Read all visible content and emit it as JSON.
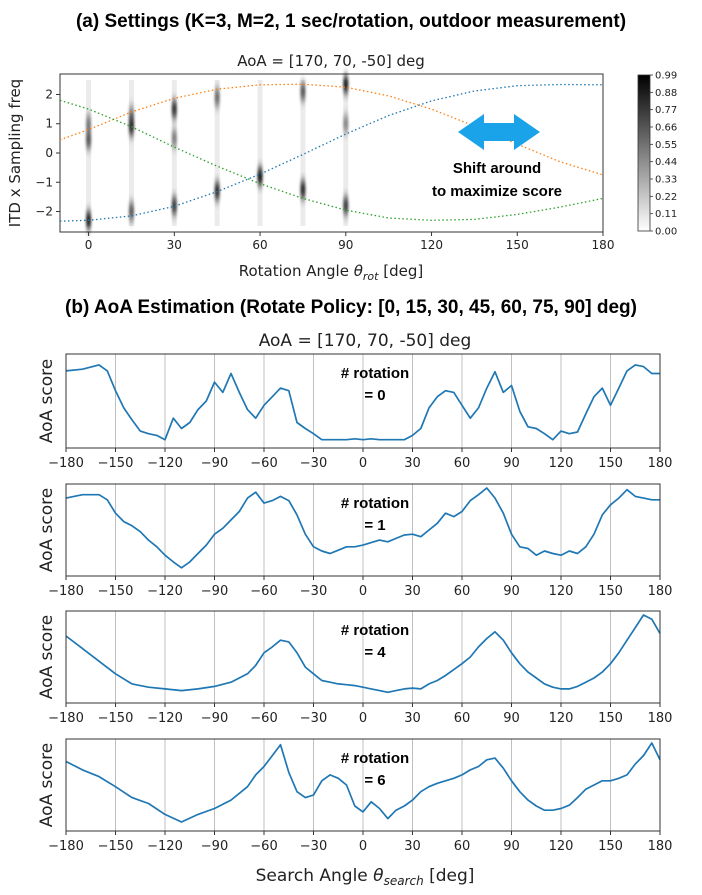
{
  "titles": {
    "section_a": "(a) Settings (K=3, M=2, 1 sec/rotation,  outdoor measurement)",
    "section_b": "(b) AoA Estimation (Rotate Policy: [0, 15, 30, 45, 60, 75, 90] deg)"
  },
  "colors": {
    "blue": "#1f77b4",
    "orange": "#ff7f0e",
    "green": "#2ca02c",
    "arrow": "#1aa3e8",
    "grid": "#b0b0b0"
  },
  "chart_data": [
    {
      "type": "heatmap",
      "title": "AoA = [170, 70, -50] deg",
      "xlabel": "Rotation Angle θrot [deg]",
      "xlabel_main": "Rotation Angle ",
      "xlabel_sym": "θ",
      "xlabel_sub": "rot",
      "xlabel_tail": " [deg]",
      "ylabel": "ITD x Sampling freq",
      "xlim": [
        -10,
        180
      ],
      "ylim": [
        -2.7,
        2.7
      ],
      "xticks": [
        0,
        30,
        60,
        90,
        120,
        150,
        180
      ],
      "yticks": [
        -2,
        -1,
        0,
        1,
        2
      ],
      "colorbar": {
        "ticks": [
          "0.99",
          "0.88",
          "0.77",
          "0.66",
          "0.55",
          "0.44",
          "0.33",
          "0.22",
          "0.11",
          "0.00"
        ],
        "range": [
          0,
          0.99
        ]
      },
      "grid": false,
      "columns_x": [
        0,
        15,
        30,
        45,
        60,
        75,
        90
      ],
      "blobs": [
        {
          "x": 0,
          "y": -2.3,
          "v": 0.9
        },
        {
          "x": 0,
          "y": 0.45,
          "v": 0.6
        },
        {
          "x": 0,
          "y": 1.0,
          "v": 0.4
        },
        {
          "x": 15,
          "y": 0.9,
          "v": 0.85
        },
        {
          "x": 15,
          "y": -2.0,
          "v": 0.6
        },
        {
          "x": 15,
          "y": 1.3,
          "v": 0.4
        },
        {
          "x": 30,
          "y": 1.5,
          "v": 0.8
        },
        {
          "x": 30,
          "y": -1.8,
          "v": 0.75
        },
        {
          "x": 30,
          "y": 0.5,
          "v": 0.4
        },
        {
          "x": 45,
          "y": -1.3,
          "v": 0.85
        },
        {
          "x": 45,
          "y": 1.9,
          "v": 0.5
        },
        {
          "x": 60,
          "y": -0.8,
          "v": 0.95
        },
        {
          "x": 75,
          "y": -1.25,
          "v": 0.85
        },
        {
          "x": 75,
          "y": 2.1,
          "v": 0.6
        },
        {
          "x": 90,
          "y": 2.35,
          "v": 0.9
        },
        {
          "x": 90,
          "y": -1.8,
          "v": 0.75
        },
        {
          "x": 90,
          "y": 1.0,
          "v": 0.35
        }
      ],
      "curves": [
        {
          "color": "blue",
          "samples": [
            [
              -10,
              -2.33
            ],
            [
              0,
              -2.3
            ],
            [
              15,
              -2.15
            ],
            [
              30,
              -1.82
            ],
            [
              45,
              -1.32
            ],
            [
              60,
              -0.72
            ],
            [
              75,
              -0.05
            ],
            [
              90,
              0.65
            ],
            [
              105,
              1.28
            ],
            [
              120,
              1.78
            ],
            [
              135,
              2.12
            ],
            [
              150,
              2.3
            ],
            [
              165,
              2.34
            ],
            [
              180,
              2.33
            ]
          ]
        },
        {
          "color": "orange",
          "samples": [
            [
              -10,
              0.45
            ],
            [
              0,
              0.8
            ],
            [
              15,
              1.4
            ],
            [
              30,
              1.87
            ],
            [
              45,
              2.18
            ],
            [
              60,
              2.33
            ],
            [
              75,
              2.35
            ],
            [
              90,
              2.25
            ],
            [
              105,
              1.95
            ],
            [
              120,
              1.5
            ],
            [
              135,
              0.92
            ],
            [
              150,
              0.3
            ],
            [
              165,
              -0.3
            ],
            [
              180,
              -0.75
            ]
          ]
        },
        {
          "color": "green",
          "samples": [
            [
              -10,
              1.8
            ],
            [
              0,
              1.5
            ],
            [
              15,
              0.9
            ],
            [
              30,
              0.2
            ],
            [
              45,
              -0.45
            ],
            [
              60,
              -1.05
            ],
            [
              75,
              -1.55
            ],
            [
              90,
              -1.95
            ],
            [
              105,
              -2.22
            ],
            [
              120,
              -2.3
            ],
            [
              135,
              -2.27
            ],
            [
              150,
              -2.1
            ],
            [
              165,
              -1.85
            ],
            [
              180,
              -1.55
            ]
          ]
        }
      ],
      "annotation": {
        "line1": "Shift around",
        "line2": "to maximize score"
      }
    },
    {
      "type": "line",
      "title": "AoA = [170, 70, -50] deg",
      "xlabel": "Search Angle θsearch [deg]",
      "xlabel_main": "Search Angle ",
      "xlabel_sym": "θ",
      "xlabel_sub": "search",
      "xlabel_tail": " [deg]",
      "ylabel": "AoA score",
      "xlim": [
        -180,
        180
      ],
      "xticks": [
        -180,
        -150,
        -120,
        -90,
        -60,
        -30,
        0,
        30,
        60,
        90,
        120,
        150,
        180
      ],
      "ylim": [
        0,
        1
      ],
      "grid": "vertical",
      "panels": [
        {
          "label_line1": "# rotation",
          "label_line2": "= 0",
          "series_color": "blue",
          "x": [
            -180,
            -170,
            -160,
            -155,
            -150,
            -145,
            -140,
            -135,
            -130,
            -125,
            -120,
            -115,
            -110,
            -105,
            -100,
            -95,
            -90,
            -85,
            -80,
            -75,
            -70,
            -65,
            -60,
            -55,
            -50,
            -45,
            -40,
            -35,
            -30,
            -25,
            -20,
            -15,
            -10,
            -5,
            0,
            5,
            10,
            15,
            20,
            25,
            30,
            35,
            40,
            45,
            50,
            55,
            60,
            65,
            70,
            75,
            80,
            85,
            90,
            95,
            100,
            105,
            110,
            115,
            120,
            125,
            130,
            135,
            140,
            145,
            150,
            155,
            160,
            165,
            170,
            175,
            180
          ],
          "y": [
            0.85,
            0.87,
            0.92,
            0.85,
            0.62,
            0.42,
            0.28,
            0.15,
            0.12,
            0.1,
            0.05,
            0.3,
            0.18,
            0.25,
            0.4,
            0.5,
            0.72,
            0.6,
            0.82,
            0.6,
            0.4,
            0.3,
            0.45,
            0.55,
            0.65,
            0.62,
            0.25,
            0.18,
            0.12,
            0.05,
            0.05,
            0.05,
            0.05,
            0.06,
            0.05,
            0.06,
            0.05,
            0.05,
            0.05,
            0.05,
            0.1,
            0.18,
            0.42,
            0.55,
            0.62,
            0.6,
            0.45,
            0.3,
            0.42,
            0.65,
            0.84,
            0.6,
            0.68,
            0.38,
            0.2,
            0.18,
            0.12,
            0.05,
            0.15,
            0.12,
            0.14,
            0.35,
            0.55,
            0.65,
            0.45,
            0.65,
            0.85,
            0.92,
            0.9,
            0.82,
            0.82
          ]
        },
        {
          "label_line1": "# rotation",
          "label_line2": "= 1",
          "series_color": "blue",
          "x": [
            -180,
            -170,
            -160,
            -155,
            -150,
            -145,
            -140,
            -135,
            -130,
            -125,
            -120,
            -115,
            -110,
            -105,
            -100,
            -95,
            -90,
            -85,
            -80,
            -75,
            -70,
            -65,
            -60,
            -55,
            -50,
            -45,
            -40,
            -35,
            -30,
            -25,
            -20,
            -15,
            -10,
            -5,
            0,
            5,
            10,
            15,
            20,
            25,
            30,
            35,
            40,
            45,
            50,
            55,
            60,
            65,
            70,
            75,
            80,
            85,
            90,
            95,
            100,
            105,
            110,
            115,
            120,
            125,
            130,
            135,
            140,
            145,
            150,
            155,
            160,
            165,
            170,
            175,
            180
          ],
          "y": [
            0.88,
            0.92,
            0.92,
            0.86,
            0.7,
            0.6,
            0.55,
            0.48,
            0.38,
            0.3,
            0.2,
            0.12,
            0.05,
            0.12,
            0.22,
            0.32,
            0.45,
            0.52,
            0.62,
            0.72,
            0.88,
            0.95,
            0.82,
            0.85,
            0.9,
            0.85,
            0.68,
            0.45,
            0.3,
            0.25,
            0.22,
            0.26,
            0.3,
            0.3,
            0.32,
            0.35,
            0.38,
            0.36,
            0.4,
            0.44,
            0.45,
            0.42,
            0.5,
            0.58,
            0.7,
            0.66,
            0.72,
            0.85,
            0.92,
            1.0,
            0.88,
            0.7,
            0.45,
            0.3,
            0.28,
            0.2,
            0.25,
            0.22,
            0.2,
            0.25,
            0.22,
            0.3,
            0.45,
            0.68,
            0.8,
            0.88,
            0.98,
            0.9,
            0.88,
            0.86,
            0.86
          ]
        },
        {
          "label_line1": "# rotation",
          "label_line2": "= 4",
          "series_color": "blue",
          "x": [
            -180,
            -170,
            -160,
            -150,
            -140,
            -130,
            -120,
            -110,
            -100,
            -90,
            -80,
            -70,
            -65,
            -60,
            -55,
            -50,
            -45,
            -40,
            -35,
            -30,
            -25,
            -20,
            -15,
            -10,
            -5,
            0,
            5,
            10,
            15,
            20,
            25,
            30,
            35,
            40,
            45,
            50,
            55,
            60,
            65,
            70,
            75,
            80,
            85,
            90,
            95,
            100,
            105,
            110,
            115,
            120,
            125,
            130,
            135,
            140,
            145,
            150,
            155,
            160,
            165,
            170,
            175,
            180
          ],
          "y": [
            0.75,
            0.6,
            0.45,
            0.3,
            0.18,
            0.14,
            0.12,
            0.1,
            0.12,
            0.15,
            0.2,
            0.3,
            0.4,
            0.55,
            0.62,
            0.7,
            0.68,
            0.55,
            0.38,
            0.3,
            0.22,
            0.2,
            0.18,
            0.17,
            0.16,
            0.14,
            0.12,
            0.1,
            0.08,
            0.1,
            0.12,
            0.13,
            0.12,
            0.18,
            0.22,
            0.28,
            0.35,
            0.42,
            0.5,
            0.62,
            0.72,
            0.8,
            0.7,
            0.55,
            0.42,
            0.32,
            0.25,
            0.18,
            0.14,
            0.12,
            0.12,
            0.15,
            0.2,
            0.25,
            0.32,
            0.42,
            0.55,
            0.7,
            0.85,
            1.0,
            0.95,
            0.78
          ]
        },
        {
          "label_line1": "# rotation",
          "label_line2": "= 6",
          "series_color": "blue",
          "x": [
            -180,
            -170,
            -160,
            -150,
            -140,
            -130,
            -120,
            -110,
            -100,
            -90,
            -80,
            -70,
            -65,
            -60,
            -55,
            -50,
            -45,
            -40,
            -35,
            -30,
            -25,
            -20,
            -15,
            -10,
            -5,
            0,
            5,
            10,
            15,
            20,
            25,
            30,
            35,
            40,
            45,
            50,
            55,
            60,
            65,
            70,
            75,
            80,
            85,
            90,
            95,
            100,
            105,
            110,
            115,
            120,
            125,
            130,
            135,
            140,
            145,
            150,
            155,
            160,
            165,
            170,
            175,
            180
          ],
          "y": [
            0.78,
            0.68,
            0.6,
            0.48,
            0.35,
            0.28,
            0.15,
            0.06,
            0.15,
            0.22,
            0.32,
            0.48,
            0.62,
            0.72,
            0.85,
            0.98,
            0.65,
            0.42,
            0.35,
            0.38,
            0.55,
            0.62,
            0.58,
            0.5,
            0.25,
            0.18,
            0.3,
            0.22,
            0.1,
            0.2,
            0.25,
            0.32,
            0.42,
            0.48,
            0.52,
            0.55,
            0.58,
            0.62,
            0.68,
            0.72,
            0.8,
            0.82,
            0.7,
            0.55,
            0.42,
            0.32,
            0.25,
            0.2,
            0.2,
            0.22,
            0.26,
            0.35,
            0.45,
            0.5,
            0.55,
            0.55,
            0.58,
            0.62,
            0.75,
            0.85,
            1.0,
            0.8
          ]
        }
      ]
    }
  ]
}
